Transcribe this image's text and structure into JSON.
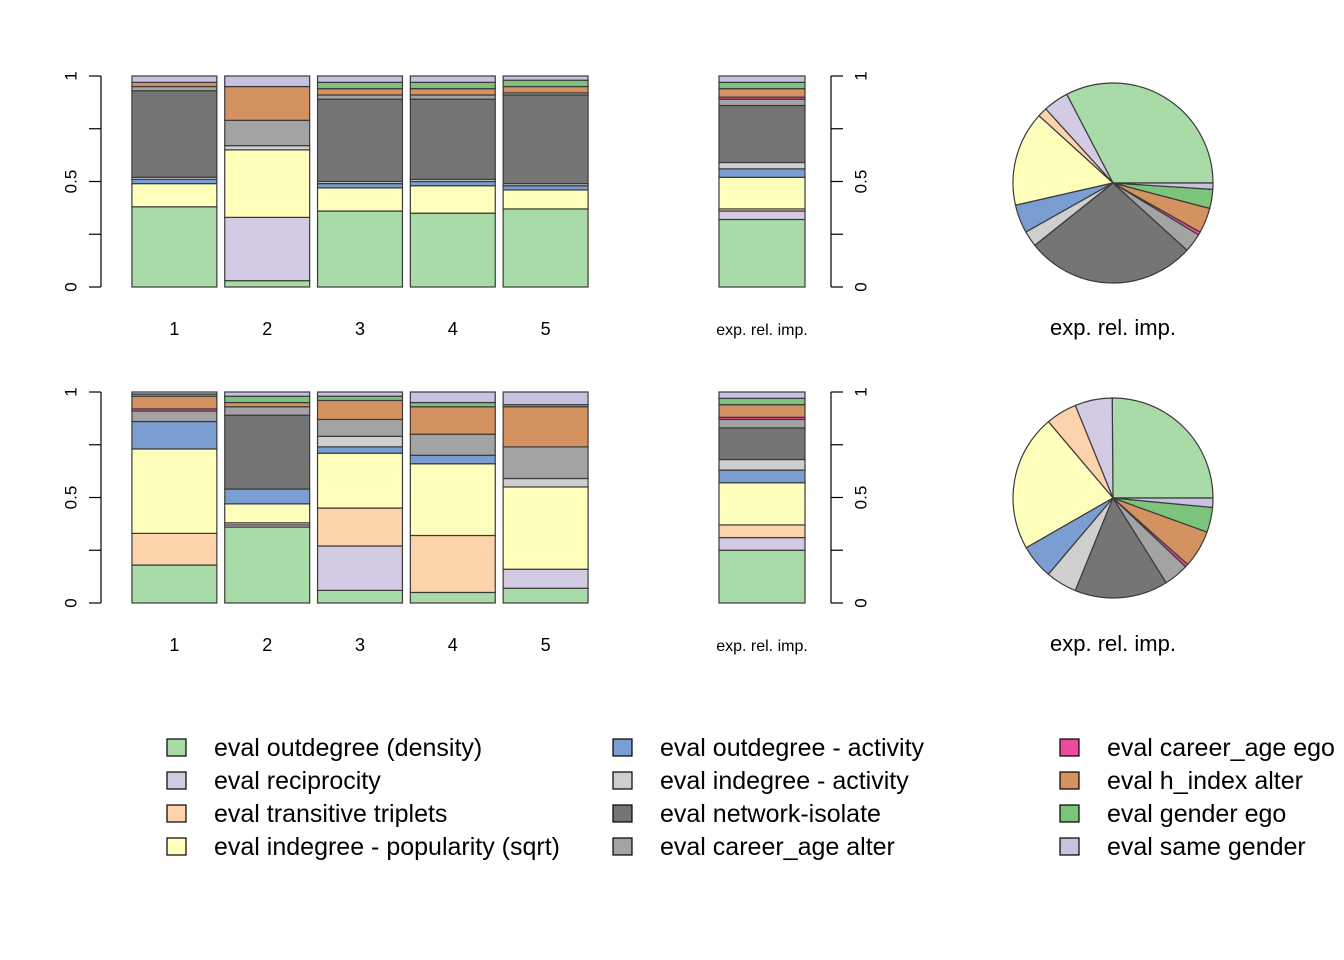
{
  "colors": {
    "eval outdegree (density)": "#a8dba8",
    "eval reciprocity": "#d3cbe3",
    "eval transitive triplets": "#fdd3ac",
    "eval indegree - popularity (sqrt)": "#ffffbc",
    "eval outdegree - activity": "#7b9ed2",
    "eval indegree - activity": "#cfcfcf",
    "eval network-isolate": "#757575",
    "eval career_age alter": "#a3a3a3",
    "eval career_age ego": "#ee4a9a",
    "eval h_index alter": "#d3925f",
    "eval gender ego": "#7cc47c",
    "eval same gender": "#c9c1e0"
  },
  "legend": {
    "items": [
      "eval outdegree (density)",
      "eval reciprocity",
      "eval transitive triplets",
      "eval indegree - popularity (sqrt)",
      "eval outdegree - activity",
      "eval indegree - activity",
      "eval network-isolate",
      "eval career_age alter",
      "eval career_age ego",
      "eval h_index alter",
      "eval gender ego",
      "eval same gender"
    ]
  },
  "chart_data": [
    {
      "type": "bar",
      "stacked": true,
      "panel": "top-left",
      "categories": [
        "1",
        "2",
        "3",
        "4",
        "5"
      ],
      "ylim": [
        0,
        1
      ],
      "yticks": [
        "0",
        "0.5",
        "1"
      ],
      "series": [
        {
          "name": "eval outdegree (density)",
          "values": [
            0.38,
            0.03,
            0.36,
            0.35,
            0.37
          ]
        },
        {
          "name": "eval reciprocity",
          "values": [
            0.0,
            0.3,
            0.0,
            0.0,
            0.0
          ]
        },
        {
          "name": "eval transitive triplets",
          "values": [
            0.0,
            0.0,
            0.0,
            0.0,
            0.0
          ]
        },
        {
          "name": "eval indegree - popularity (sqrt)",
          "values": [
            0.11,
            0.32,
            0.11,
            0.13,
            0.09
          ]
        },
        {
          "name": "eval outdegree - activity",
          "values": [
            0.02,
            0.0,
            0.02,
            0.02,
            0.02
          ]
        },
        {
          "name": "eval indegree - activity",
          "values": [
            0.01,
            0.02,
            0.01,
            0.01,
            0.01
          ]
        },
        {
          "name": "eval network-isolate",
          "values": [
            0.41,
            0.0,
            0.39,
            0.38,
            0.42
          ]
        },
        {
          "name": "eval career_age alter",
          "values": [
            0.02,
            0.12,
            0.02,
            0.02,
            0.01
          ]
        },
        {
          "name": "eval career_age ego",
          "values": [
            0.0,
            0.0,
            0.0,
            0.0,
            0.0
          ]
        },
        {
          "name": "eval h_index alter",
          "values": [
            0.02,
            0.16,
            0.03,
            0.03,
            0.03
          ]
        },
        {
          "name": "eval gender ego",
          "values": [
            0.0,
            0.0,
            0.03,
            0.03,
            0.03
          ]
        },
        {
          "name": "eval same gender",
          "values": [
            0.03,
            0.05,
            0.03,
            0.03,
            0.02
          ]
        }
      ]
    },
    {
      "type": "bar",
      "stacked": true,
      "panel": "top-middle",
      "categories": [
        "exp. rel. imp."
      ],
      "ylim": [
        0,
        1
      ],
      "yticks": [
        "0",
        "0.5",
        "1"
      ],
      "series": [
        {
          "name": "eval outdegree (density)",
          "values": [
            0.32
          ]
        },
        {
          "name": "eval reciprocity",
          "values": [
            0.04
          ]
        },
        {
          "name": "eval transitive triplets",
          "values": [
            0.01
          ]
        },
        {
          "name": "eval indegree - popularity (sqrt)",
          "values": [
            0.15
          ]
        },
        {
          "name": "eval outdegree - activity",
          "values": [
            0.04
          ]
        },
        {
          "name": "eval indegree - activity",
          "values": [
            0.03
          ]
        },
        {
          "name": "eval network-isolate",
          "values": [
            0.27
          ]
        },
        {
          "name": "eval career_age alter",
          "values": [
            0.03
          ]
        },
        {
          "name": "eval career_age ego",
          "values": [
            0.01
          ]
        },
        {
          "name": "eval h_index alter",
          "values": [
            0.04
          ]
        },
        {
          "name": "eval gender ego",
          "values": [
            0.03
          ]
        },
        {
          "name": "eval same gender",
          "values": [
            0.03
          ]
        }
      ]
    },
    {
      "type": "pie",
      "panel": "top-right",
      "xlabel": "exp. rel. imp.",
      "slices": [
        {
          "name": "eval outdegree (density)",
          "value": 0.32
        },
        {
          "name": "eval reciprocity",
          "value": 0.04
        },
        {
          "name": "eval transitive triplets",
          "value": 0.015
        },
        {
          "name": "eval indegree - popularity (sqrt)",
          "value": 0.15
        },
        {
          "name": "eval outdegree - activity",
          "value": 0.045
        },
        {
          "name": "eval indegree - activity",
          "value": 0.025
        },
        {
          "name": "eval network-isolate",
          "value": 0.27
        },
        {
          "name": "eval career_age alter",
          "value": 0.03
        },
        {
          "name": "eval career_age ego",
          "value": 0.005
        },
        {
          "name": "eval h_index alter",
          "value": 0.04
        },
        {
          "name": "eval gender ego",
          "value": 0.03
        },
        {
          "name": "eval same gender",
          "value": 0.01
        }
      ]
    },
    {
      "type": "bar",
      "stacked": true,
      "panel": "bottom-left",
      "categories": [
        "1",
        "2",
        "3",
        "4",
        "5"
      ],
      "ylim": [
        0,
        1
      ],
      "yticks": [
        "0",
        "0.5",
        "1"
      ],
      "series": [
        {
          "name": "eval outdegree (density)",
          "values": [
            0.18,
            0.36,
            0.06,
            0.05,
            0.07
          ]
        },
        {
          "name": "eval reciprocity",
          "values": [
            0.0,
            0.01,
            0.21,
            0.0,
            0.09
          ]
        },
        {
          "name": "eval transitive triplets",
          "values": [
            0.15,
            0.01,
            0.18,
            0.27,
            0.0
          ]
        },
        {
          "name": "eval indegree - popularity (sqrt)",
          "values": [
            0.4,
            0.09,
            0.26,
            0.34,
            0.39
          ]
        },
        {
          "name": "eval outdegree - activity",
          "values": [
            0.13,
            0.07,
            0.03,
            0.04,
            0.0
          ]
        },
        {
          "name": "eval indegree - activity",
          "values": [
            0.0,
            0.0,
            0.05,
            0.0,
            0.04
          ]
        },
        {
          "name": "eval network-isolate",
          "values": [
            0.0,
            0.35,
            0.0,
            0.0,
            0.0
          ]
        },
        {
          "name": "eval career_age alter",
          "values": [
            0.05,
            0.04,
            0.08,
            0.1,
            0.15
          ]
        },
        {
          "name": "eval career_age ego",
          "values": [
            0.01,
            0.0,
            0.0,
            0.0,
            0.0
          ]
        },
        {
          "name": "eval h_index alter",
          "values": [
            0.06,
            0.02,
            0.09,
            0.13,
            0.19
          ]
        },
        {
          "name": "eval gender ego",
          "values": [
            0.01,
            0.03,
            0.02,
            0.02,
            0.01
          ]
        },
        {
          "name": "eval same gender",
          "values": [
            0.01,
            0.02,
            0.02,
            0.05,
            0.06
          ]
        }
      ]
    },
    {
      "type": "bar",
      "stacked": true,
      "panel": "bottom-middle",
      "categories": [
        "exp. rel. imp."
      ],
      "ylim": [
        0,
        1
      ],
      "yticks": [
        "0",
        "0.5",
        "1"
      ],
      "series": [
        {
          "name": "eval outdegree (density)",
          "values": [
            0.25
          ]
        },
        {
          "name": "eval reciprocity",
          "values": [
            0.06
          ]
        },
        {
          "name": "eval transitive triplets",
          "values": [
            0.06
          ]
        },
        {
          "name": "eval indegree - popularity (sqrt)",
          "values": [
            0.2
          ]
        },
        {
          "name": "eval outdegree - activity",
          "values": [
            0.06
          ]
        },
        {
          "name": "eval indegree - activity",
          "values": [
            0.05
          ]
        },
        {
          "name": "eval network-isolate",
          "values": [
            0.15
          ]
        },
        {
          "name": "eval career_age alter",
          "values": [
            0.04
          ]
        },
        {
          "name": "eval career_age ego",
          "values": [
            0.01
          ]
        },
        {
          "name": "eval h_index alter",
          "values": [
            0.06
          ]
        },
        {
          "name": "eval gender ego",
          "values": [
            0.03
          ]
        },
        {
          "name": "eval same gender",
          "values": [
            0.03
          ]
        }
      ]
    },
    {
      "type": "pie",
      "panel": "bottom-right",
      "xlabel": "exp. rel. imp.",
      "slices": [
        {
          "name": "eval outdegree (density)",
          "value": 0.25
        },
        {
          "name": "eval reciprocity",
          "value": 0.06
        },
        {
          "name": "eval transitive triplets",
          "value": 0.05
        },
        {
          "name": "eval indegree - popularity (sqrt)",
          "value": 0.22
        },
        {
          "name": "eval outdegree - activity",
          "value": 0.055
        },
        {
          "name": "eval indegree - activity",
          "value": 0.05
        },
        {
          "name": "eval network-isolate",
          "value": 0.15
        },
        {
          "name": "eval career_age alter",
          "value": 0.04
        },
        {
          "name": "eval career_age ego",
          "value": 0.005
        },
        {
          "name": "eval h_index alter",
          "value": 0.06
        },
        {
          "name": "eval gender ego",
          "value": 0.04
        },
        {
          "name": "eval same gender",
          "value": 0.015
        }
      ]
    }
  ]
}
